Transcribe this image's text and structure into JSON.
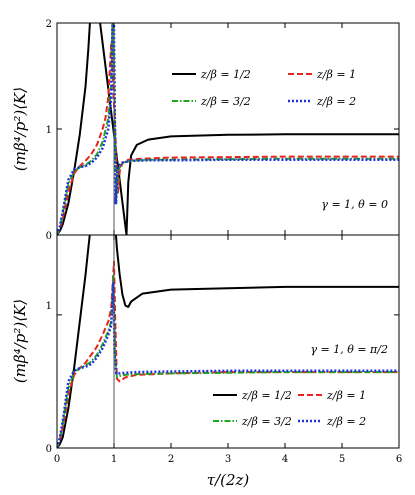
{
  "chart_data": [
    {
      "type": "line",
      "panel": "top",
      "xlim": [
        0,
        6
      ],
      "ylim": [
        0,
        2
      ],
      "xticks": [
        0,
        1,
        2,
        3,
        4,
        5,
        6
      ],
      "yticks": [
        0,
        1,
        2
      ],
      "ytick_labels": [
        "0",
        "1",
        "2"
      ],
      "ylabel": "(mβ⁴/p²)⟨K⟩",
      "annotation": "γ = 1,  θ = 0",
      "legend_placement": "top-right",
      "vertical_line_x": 1,
      "series": [
        {
          "name": "z/β = 1/2",
          "color": "#000000",
          "dash": "solid",
          "x": [
            0,
            0.05,
            0.1,
            0.2,
            0.3,
            0.4,
            0.5,
            0.55,
            0.6,
            0.64,
            1.22,
            1.25,
            1.3,
            1.4,
            1.6,
            2,
            3,
            4,
            5,
            6
          ],
          "y": [
            0,
            0.04,
            0.1,
            0.3,
            0.6,
            0.95,
            1.4,
            1.75,
            2.2,
            2.5,
            0,
            0.5,
            0.75,
            0.85,
            0.9,
            0.93,
            0.945,
            0.95,
            0.95,
            0.95
          ]
        },
        {
          "name": "z/β = 1",
          "color": "#e8221c",
          "dash": "dashed",
          "x": [
            0,
            0.05,
            0.1,
            0.2,
            0.3,
            0.4,
            0.5,
            0.6,
            0.7,
            0.8,
            0.85,
            0.9,
            0.95,
            1.07,
            1.1,
            1.15,
            1.25,
            1.5,
            2,
            3,
            4,
            5,
            6
          ],
          "y": [
            0,
            0.06,
            0.15,
            0.4,
            0.58,
            0.65,
            0.7,
            0.76,
            0.85,
            1.0,
            1.1,
            1.3,
            1.8,
            0.4,
            0.6,
            0.68,
            0.71,
            0.72,
            0.73,
            0.735,
            0.74,
            0.74,
            0.74
          ]
        },
        {
          "name": "z/β = 3/2",
          "color": "#1fa51f",
          "dash": "dashdot",
          "x": [
            0,
            0.05,
            0.1,
            0.2,
            0.3,
            0.4,
            0.5,
            0.6,
            0.7,
            0.8,
            0.9,
            0.95,
            0.98,
            1.04,
            1.08,
            1.15,
            1.3,
            1.6,
            2,
            3,
            4,
            5,
            6
          ],
          "y": [
            0,
            0.07,
            0.2,
            0.48,
            0.6,
            0.64,
            0.66,
            0.7,
            0.76,
            0.88,
            1.1,
            1.4,
            2.2,
            0.3,
            0.62,
            0.68,
            0.7,
            0.71,
            0.71,
            0.715,
            0.72,
            0.72,
            0.72
          ]
        },
        {
          "name": "z/β = 2",
          "color": "#1f2fe0",
          "dash": "dotted",
          "x": [
            0,
            0.05,
            0.1,
            0.2,
            0.3,
            0.4,
            0.5,
            0.6,
            0.7,
            0.8,
            0.9,
            0.95,
            0.99,
            1.03,
            1.06,
            1.12,
            1.3,
            1.6,
            2,
            3,
            4,
            5,
            6
          ],
          "y": [
            0,
            0.08,
            0.22,
            0.52,
            0.62,
            0.64,
            0.65,
            0.68,
            0.73,
            0.82,
            1.0,
            1.3,
            2.5,
            0.3,
            0.62,
            0.68,
            0.7,
            0.705,
            0.705,
            0.71,
            0.71,
            0.71,
            0.71
          ]
        }
      ]
    },
    {
      "type": "line",
      "panel": "bottom",
      "xlim": [
        0,
        6
      ],
      "ylim": [
        0,
        1.6
      ],
      "xticks": [
        0,
        1,
        2,
        3,
        4,
        5,
        6
      ],
      "xtick_labels": [
        "0",
        "1",
        "2",
        "3",
        "4",
        "5",
        "6"
      ],
      "yticks": [
        0,
        1
      ],
      "ytick_labels": [
        "0",
        "1"
      ],
      "xlabel": "τ/(2z)",
      "ylabel": "(mβ⁴/p²)⟨K⟩",
      "annotation": "γ = 1,  θ = π/2",
      "legend_placement": "lower-right",
      "vertical_line_x": 1,
      "series": [
        {
          "name": "z/β = 1/2",
          "color": "#000000",
          "dash": "solid",
          "x": [
            0,
            0.05,
            0.1,
            0.2,
            0.3,
            0.4,
            0.5,
            0.55,
            0.6,
            1.02,
            1.05,
            1.1,
            1.15,
            1.2,
            1.25,
            1.3,
            1.5,
            2,
            3,
            4,
            5,
            6
          ],
          "y": [
            0,
            0.03,
            0.08,
            0.3,
            0.6,
            0.95,
            1.3,
            1.5,
            1.7,
            1.7,
            1.5,
            1.3,
            1.15,
            1.07,
            1.06,
            1.1,
            1.16,
            1.19,
            1.2,
            1.21,
            1.21,
            1.21
          ]
        },
        {
          "name": "z/β = 1",
          "color": "#e8221c",
          "dash": "dashed",
          "x": [
            0,
            0.05,
            0.1,
            0.2,
            0.3,
            0.4,
            0.5,
            0.6,
            0.7,
            0.8,
            0.9,
            0.95,
            1.0,
            1.02,
            1.05,
            1.1,
            1.2,
            1.4,
            2,
            3,
            4,
            5,
            6
          ],
          "y": [
            0,
            0.06,
            0.15,
            0.4,
            0.55,
            0.6,
            0.64,
            0.7,
            0.76,
            0.85,
            0.95,
            1.05,
            1.4,
            1.0,
            0.52,
            0.5,
            0.53,
            0.55,
            0.56,
            0.57,
            0.57,
            0.57,
            0.57
          ]
        },
        {
          "name": "z/β = 3/2",
          "color": "#1fa51f",
          "dash": "dashdot",
          "x": [
            0,
            0.05,
            0.1,
            0.2,
            0.3,
            0.4,
            0.5,
            0.6,
            0.7,
            0.8,
            0.9,
            0.95,
            0.99,
            1.02,
            1.05,
            1.1,
            1.2,
            1.4,
            2,
            3,
            4,
            5,
            6
          ],
          "y": [
            0,
            0.07,
            0.18,
            0.45,
            0.57,
            0.6,
            0.62,
            0.65,
            0.7,
            0.78,
            0.88,
            0.95,
            1.3,
            0.7,
            0.53,
            0.54,
            0.55,
            0.555,
            0.56,
            0.565,
            0.57,
            0.57,
            0.57
          ]
        },
        {
          "name": "z/β = 2",
          "color": "#1f2fe0",
          "dash": "dotted",
          "x": [
            0,
            0.05,
            0.1,
            0.2,
            0.3,
            0.4,
            0.5,
            0.6,
            0.7,
            0.8,
            0.9,
            0.95,
            0.99,
            1.01,
            1.04,
            1.1,
            1.2,
            1.4,
            2,
            3,
            4,
            5,
            6
          ],
          "y": [
            0,
            0.08,
            0.2,
            0.5,
            0.58,
            0.6,
            0.61,
            0.63,
            0.68,
            0.75,
            0.85,
            0.92,
            1.25,
            0.7,
            0.56,
            0.56,
            0.565,
            0.57,
            0.575,
            0.58,
            0.58,
            0.58,
            0.58
          ]
        }
      ]
    }
  ]
}
